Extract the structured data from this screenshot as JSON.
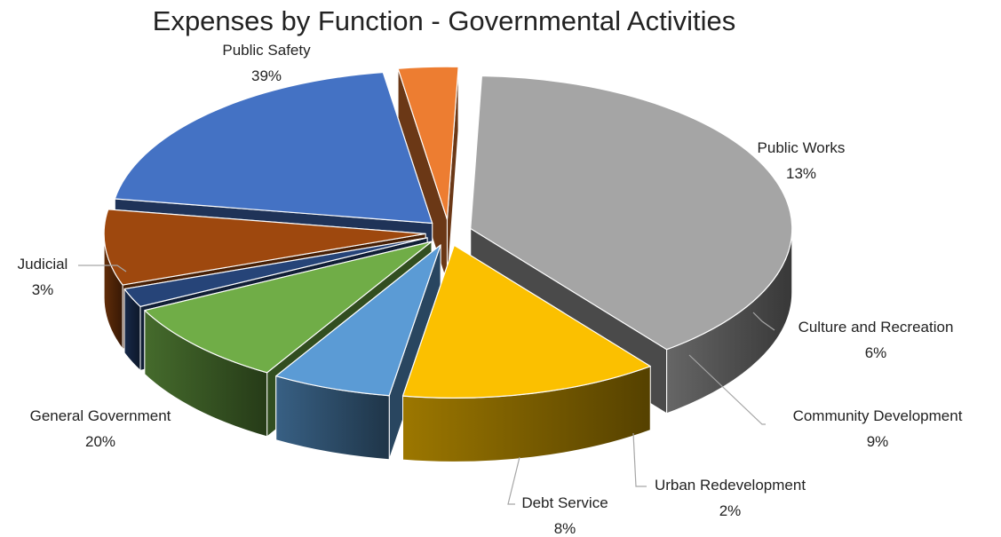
{
  "chart_data": {
    "type": "pie",
    "title": "Expenses by Function - Governmental Activities",
    "slices": [
      {
        "name": "Public Safety",
        "value": 39,
        "label": "39%",
        "color": "#a5a5a5"
      },
      {
        "name": "Public Works",
        "value": 13,
        "label": "13%",
        "color": "#fbc000"
      },
      {
        "name": "Culture and Recreation",
        "value": 6,
        "label": "6%",
        "color": "#5b9bd5"
      },
      {
        "name": "Community Development",
        "value": 9,
        "label": "9%",
        "color": "#70ad47"
      },
      {
        "name": "Urban Redevelopment",
        "value": 2,
        "label": "2%",
        "color": "#264478"
      },
      {
        "name": "Debt Service",
        "value": 8,
        "label": "8%",
        "color": "#9e480e"
      },
      {
        "name": "General Government",
        "value": 20,
        "label": "20%",
        "color": "#4472c4"
      },
      {
        "name": "Judicial",
        "value": 3,
        "label": "3%",
        "color": "#ed7d31"
      }
    ],
    "legend": "none",
    "style": "3d-exploded-pie"
  }
}
